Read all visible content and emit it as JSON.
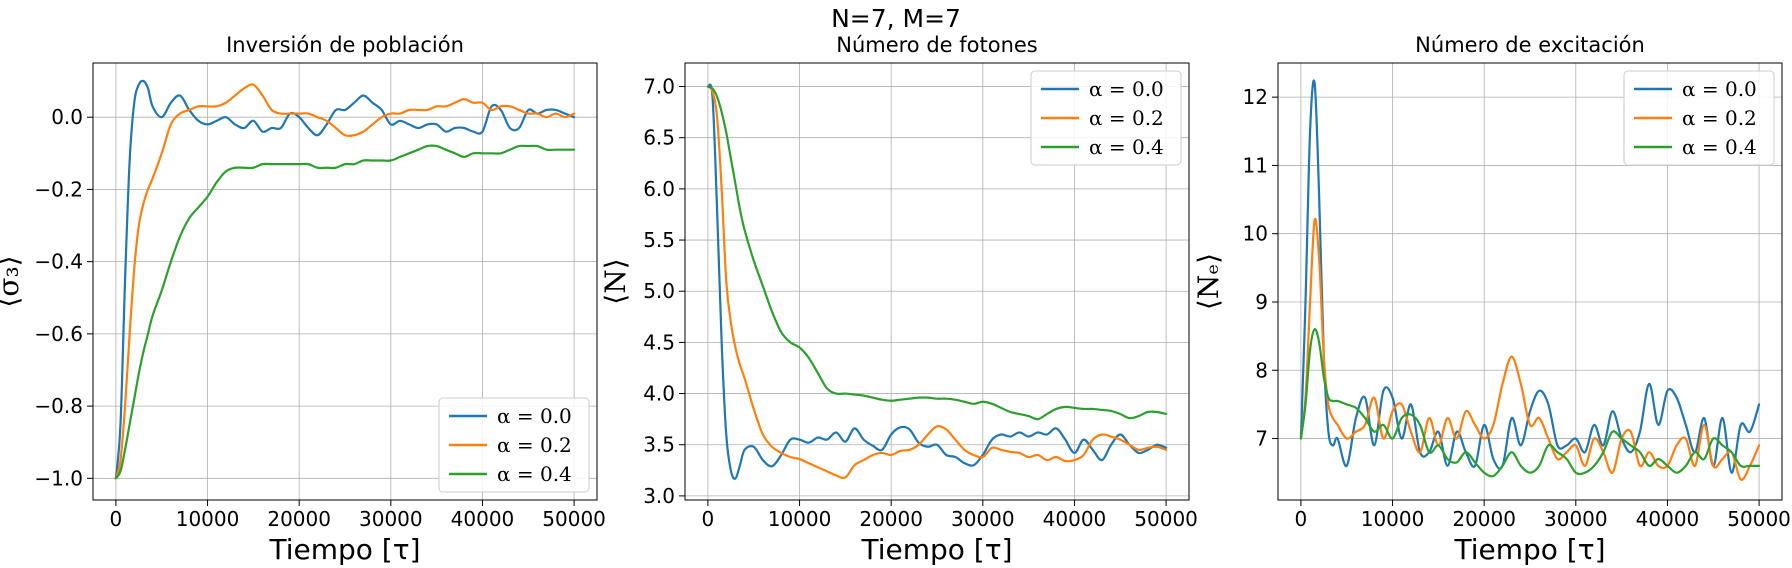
{
  "figure": {
    "suptitle": "N=7, M=7"
  },
  "colors": {
    "alpha_0.0": "#1f77b4",
    "alpha_0.2": "#ff7f0e",
    "alpha_0.4": "#2ca02c"
  },
  "chart_data": [
    {
      "type": "line",
      "title": "Inversión de población",
      "xlabel": "Tiempo [τ]",
      "ylabel": "⟨σ₃⟩",
      "xlim": [
        -2500,
        52500
      ],
      "ylim": [
        -1.06,
        0.15
      ],
      "xticks": [
        0,
        10000,
        20000,
        30000,
        40000,
        50000
      ],
      "xticklabels": [
        "0",
        "10000",
        "20000",
        "30000",
        "40000",
        "50000"
      ],
      "yticks": [
        -1.0,
        -0.8,
        -0.6,
        -0.4,
        -0.2,
        0.0
      ],
      "yticklabels": [
        "−1.0",
        "−0.8",
        "−0.6",
        "−0.4",
        "−0.2",
        "0.0"
      ],
      "grid": true,
      "legend_position": "lower-right",
      "x": [
        0,
        500,
        1000,
        1500,
        2000,
        2500,
        3000,
        3500,
        4000,
        5000,
        6000,
        7000,
        8000,
        9000,
        10000,
        11000,
        12000,
        13000,
        14000,
        15000,
        16000,
        17000,
        18000,
        19000,
        20000,
        21000,
        22000,
        23000,
        24000,
        25000,
        26000,
        27000,
        28000,
        29000,
        30000,
        31000,
        32000,
        33000,
        34000,
        35000,
        36000,
        37000,
        38000,
        39000,
        40000,
        41000,
        42000,
        43000,
        44000,
        45000,
        46000,
        47000,
        48000,
        49000,
        50000
      ],
      "series": [
        {
          "name": "α = 0.0",
          "color": "#1f77b4",
          "values": [
            -1.0,
            -0.85,
            -0.45,
            -0.12,
            0.04,
            0.09,
            0.1,
            0.08,
            0.03,
            0.0,
            0.04,
            0.06,
            0.02,
            -0.01,
            -0.02,
            -0.01,
            -0.0,
            -0.02,
            -0.03,
            -0.01,
            -0.04,
            -0.03,
            -0.03,
            0.01,
            0.0,
            -0.03,
            -0.05,
            -0.02,
            0.02,
            0.02,
            0.04,
            0.06,
            0.04,
            0.02,
            -0.02,
            -0.01,
            -0.02,
            -0.03,
            -0.02,
            -0.02,
            -0.04,
            -0.03,
            -0.03,
            -0.04,
            -0.04,
            0.03,
            0.02,
            -0.03,
            -0.03,
            0.02,
            0.01,
            0.02,
            0.02,
            0.01,
            0.0
          ]
        },
        {
          "name": "α = 0.2",
          "color": "#ff7f0e",
          "values": [
            -1.0,
            -0.95,
            -0.8,
            -0.6,
            -0.42,
            -0.3,
            -0.24,
            -0.2,
            -0.17,
            -0.1,
            -0.02,
            0.01,
            0.02,
            0.03,
            0.03,
            0.03,
            0.04,
            0.06,
            0.08,
            0.09,
            0.06,
            0.02,
            0.01,
            0.01,
            0.01,
            0.01,
            0.0,
            -0.01,
            -0.03,
            -0.05,
            -0.05,
            -0.04,
            -0.02,
            0.0,
            0.01,
            0.01,
            0.02,
            0.02,
            0.02,
            0.03,
            0.03,
            0.04,
            0.05,
            0.04,
            0.04,
            0.02,
            0.03,
            0.03,
            0.02,
            0.01,
            0.01,
            0.0,
            0.01,
            0.0,
            0.01
          ]
        },
        {
          "name": "α = 0.4",
          "color": "#2ca02c",
          "values": [
            -1.0,
            -0.98,
            -0.92,
            -0.85,
            -0.78,
            -0.71,
            -0.65,
            -0.6,
            -0.55,
            -0.48,
            -0.4,
            -0.33,
            -0.28,
            -0.25,
            -0.22,
            -0.18,
            -0.15,
            -0.14,
            -0.14,
            -0.14,
            -0.13,
            -0.13,
            -0.13,
            -0.13,
            -0.13,
            -0.13,
            -0.14,
            -0.14,
            -0.14,
            -0.13,
            -0.13,
            -0.12,
            -0.12,
            -0.12,
            -0.12,
            -0.11,
            -0.1,
            -0.09,
            -0.08,
            -0.08,
            -0.09,
            -0.1,
            -0.11,
            -0.1,
            -0.1,
            -0.1,
            -0.1,
            -0.09,
            -0.08,
            -0.08,
            -0.08,
            -0.09,
            -0.09,
            -0.09,
            -0.09
          ]
        }
      ]
    },
    {
      "type": "line",
      "title": "Número de  fotones",
      "xlabel": "Tiempo [τ]",
      "ylabel": "⟨N⟩",
      "xlim": [
        -2500,
        52500
      ],
      "ylim": [
        2.96,
        7.23
      ],
      "xticks": [
        0,
        10000,
        20000,
        30000,
        40000,
        50000
      ],
      "xticklabels": [
        "0",
        "10000",
        "20000",
        "30000",
        "40000",
        "50000"
      ],
      "yticks": [
        3.0,
        3.5,
        4.0,
        4.5,
        5.0,
        5.5,
        6.0,
        6.5,
        7.0
      ],
      "yticklabels": [
        "3.0",
        "3.5",
        "4.0",
        "4.5",
        "5.0",
        "5.5",
        "6.0",
        "6.5",
        "7.0"
      ],
      "grid": true,
      "legend_position": "upper-right",
      "x": [
        0,
        500,
        1000,
        1500,
        2000,
        2500,
        3000,
        3500,
        4000,
        5000,
        6000,
        7000,
        8000,
        9000,
        10000,
        11000,
        12000,
        13000,
        14000,
        15000,
        16000,
        17000,
        18000,
        19000,
        20000,
        21000,
        22000,
        23000,
        24000,
        25000,
        26000,
        27000,
        28000,
        29000,
        30000,
        31000,
        32000,
        33000,
        34000,
        35000,
        36000,
        37000,
        38000,
        39000,
        40000,
        41000,
        42000,
        43000,
        44000,
        45000,
        46000,
        47000,
        48000,
        49000,
        50000
      ],
      "series": [
        {
          "name": "α = 0.0",
          "color": "#1f77b4",
          "values": [
            7.0,
            6.9,
            5.8,
            4.5,
            3.6,
            3.25,
            3.17,
            3.3,
            3.45,
            3.48,
            3.35,
            3.29,
            3.4,
            3.55,
            3.55,
            3.52,
            3.57,
            3.55,
            3.62,
            3.53,
            3.66,
            3.55,
            3.49,
            3.45,
            3.6,
            3.67,
            3.65,
            3.52,
            3.48,
            3.5,
            3.4,
            3.38,
            3.32,
            3.3,
            3.4,
            3.55,
            3.6,
            3.58,
            3.62,
            3.58,
            3.62,
            3.6,
            3.66,
            3.55,
            3.42,
            3.55,
            3.45,
            3.35,
            3.5,
            3.6,
            3.5,
            3.42,
            3.45,
            3.5,
            3.47
          ]
        },
        {
          "name": "α = 0.2",
          "color": "#ff7f0e",
          "values": [
            7.0,
            6.95,
            6.7,
            6.0,
            5.1,
            4.7,
            4.45,
            4.28,
            4.15,
            3.85,
            3.6,
            3.48,
            3.42,
            3.38,
            3.36,
            3.32,
            3.28,
            3.24,
            3.2,
            3.18,
            3.3,
            3.35,
            3.4,
            3.42,
            3.4,
            3.44,
            3.45,
            3.5,
            3.6,
            3.68,
            3.65,
            3.55,
            3.45,
            3.4,
            3.38,
            3.47,
            3.45,
            3.43,
            3.42,
            3.38,
            3.4,
            3.35,
            3.38,
            3.34,
            3.35,
            3.4,
            3.55,
            3.6,
            3.58,
            3.55,
            3.5,
            3.45,
            3.47,
            3.48,
            3.45
          ]
        },
        {
          "name": "α = 0.4",
          "color": "#2ca02c",
          "values": [
            7.0,
            6.98,
            6.9,
            6.75,
            6.55,
            6.3,
            6.05,
            5.8,
            5.6,
            5.3,
            5.05,
            4.8,
            4.6,
            4.5,
            4.45,
            4.35,
            4.2,
            4.05,
            4.0,
            4.0,
            3.99,
            3.98,
            3.96,
            3.94,
            3.93,
            3.94,
            3.95,
            3.96,
            3.96,
            3.95,
            3.95,
            3.94,
            3.92,
            3.9,
            3.92,
            3.9,
            3.86,
            3.82,
            3.8,
            3.78,
            3.75,
            3.8,
            3.85,
            3.87,
            3.86,
            3.85,
            3.85,
            3.84,
            3.83,
            3.8,
            3.76,
            3.78,
            3.82,
            3.82,
            3.8
          ]
        }
      ]
    },
    {
      "type": "line",
      "title": "Número de  excitación",
      "xlabel": "Tiempo [τ]",
      "ylabel": "⟨Nₑ⟩",
      "xlim": [
        -2500,
        52500
      ],
      "ylim": [
        6.1,
        12.5
      ],
      "xticks": [
        0,
        10000,
        20000,
        30000,
        40000,
        50000
      ],
      "xticklabels": [
        "0",
        "10000",
        "20000",
        "30000",
        "40000",
        "50000"
      ],
      "yticks": [
        7,
        8,
        9,
        10,
        11,
        12
      ],
      "yticklabels": [
        "7",
        "8",
        "9",
        "10",
        "11",
        "12"
      ],
      "grid": true,
      "legend_position": "upper-right",
      "x": [
        0,
        500,
        1000,
        1500,
        2000,
        2500,
        3000,
        3500,
        4000,
        5000,
        6000,
        7000,
        8000,
        9000,
        10000,
        11000,
        12000,
        13000,
        14000,
        15000,
        16000,
        17000,
        18000,
        19000,
        20000,
        21000,
        22000,
        23000,
        24000,
        25000,
        26000,
        27000,
        28000,
        29000,
        30000,
        31000,
        32000,
        33000,
        34000,
        35000,
        36000,
        37000,
        38000,
        39000,
        40000,
        41000,
        42000,
        43000,
        44000,
        45000,
        46000,
        47000,
        48000,
        49000,
        50000
      ],
      "series": [
        {
          "name": "α = 0.0",
          "color": "#1f77b4",
          "values": [
            7.0,
            9.0,
            11.5,
            12.2,
            10.5,
            8.2,
            7.1,
            6.9,
            7.0,
            6.6,
            7.3,
            7.6,
            6.9,
            7.7,
            7.6,
            7.0,
            7.5,
            6.8,
            6.8,
            7.1,
            6.6,
            7.1,
            6.8,
            6.6,
            7.2,
            6.7,
            6.6,
            7.3,
            6.9,
            7.4,
            7.7,
            7.5,
            6.9,
            6.9,
            7.0,
            6.8,
            7.2,
            6.9,
            7.4,
            7.0,
            6.8,
            7.1,
            7.8,
            7.2,
            7.7,
            7.6,
            7.2,
            6.8,
            7.3,
            6.6,
            7.3,
            6.5,
            7.2,
            7.1,
            7.5
          ]
        },
        {
          "name": "α = 0.2",
          "color": "#ff7f0e",
          "values": [
            7.0,
            7.6,
            9.0,
            10.2,
            9.6,
            8.2,
            7.5,
            7.3,
            7.2,
            7.0,
            7.1,
            7.2,
            7.6,
            7.0,
            7.4,
            7.5,
            7.1,
            6.8,
            7.3,
            6.9,
            7.3,
            7.0,
            7.4,
            7.2,
            7.0,
            7.2,
            7.8,
            8.2,
            7.8,
            7.2,
            7.3,
            7.0,
            6.7,
            6.8,
            6.9,
            6.6,
            7.0,
            6.8,
            6.5,
            7.0,
            7.1,
            6.6,
            6.8,
            6.6,
            6.6,
            6.9,
            7.0,
            6.6,
            7.2,
            6.6,
            6.7,
            6.8,
            6.4,
            6.6,
            6.9
          ]
        },
        {
          "name": "α = 0.4",
          "color": "#2ca02c",
          "values": [
            7.0,
            7.5,
            8.3,
            8.6,
            8.4,
            7.9,
            7.6,
            7.55,
            7.55,
            7.5,
            7.45,
            7.3,
            7.1,
            7.2,
            7.0,
            7.3,
            7.35,
            7.2,
            6.8,
            6.9,
            6.7,
            6.65,
            6.8,
            6.65,
            6.5,
            6.45,
            6.6,
            6.8,
            6.6,
            6.5,
            6.6,
            6.9,
            6.8,
            6.7,
            6.5,
            6.5,
            6.6,
            6.8,
            7.1,
            7.0,
            6.9,
            6.8,
            6.6,
            6.7,
            6.6,
            6.5,
            6.6,
            6.8,
            6.7,
            7.0,
            6.9,
            6.8,
            6.6,
            6.6,
            6.6
          ]
        }
      ]
    }
  ]
}
